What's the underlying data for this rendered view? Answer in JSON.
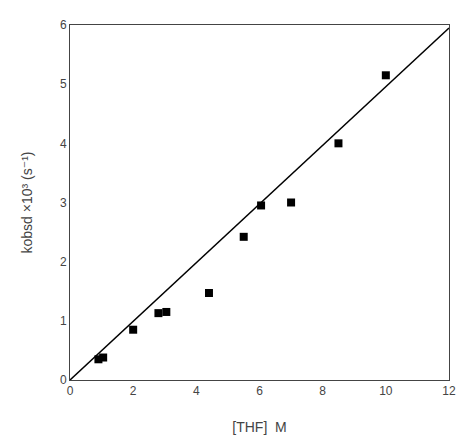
{
  "chart_data": {
    "type": "scatter",
    "x_label": "[THF]  M",
    "y_label": "kobsd ×10³ (s⁻¹)",
    "series": [
      {
        "type": "line",
        "x": [
          0.0,
          12.0
        ],
        "values": [
          0.0,
          5.95
        ],
        "color": "black",
        "line_style": "solid"
      },
      {
        "type": "scatter",
        "x": [
          0.9,
          1.05,
          2.0,
          2.8,
          3.05,
          4.4,
          5.5,
          6.05,
          7.0,
          8.5,
          10.0
        ],
        "values": [
          0.35,
          0.38,
          0.85,
          1.13,
          1.15,
          1.47,
          2.42,
          2.95,
          3.0,
          4.0,
          5.15
        ],
        "color": "black",
        "marker": "square"
      }
    ],
    "xlim": [
      0,
      12
    ],
    "ylim": [
      0,
      6
    ],
    "xticks": [
      0,
      2,
      4,
      6,
      8,
      10,
      12
    ],
    "yticks": [
      0,
      1,
      2,
      3,
      4,
      5,
      6
    ],
    "grid": false
  }
}
